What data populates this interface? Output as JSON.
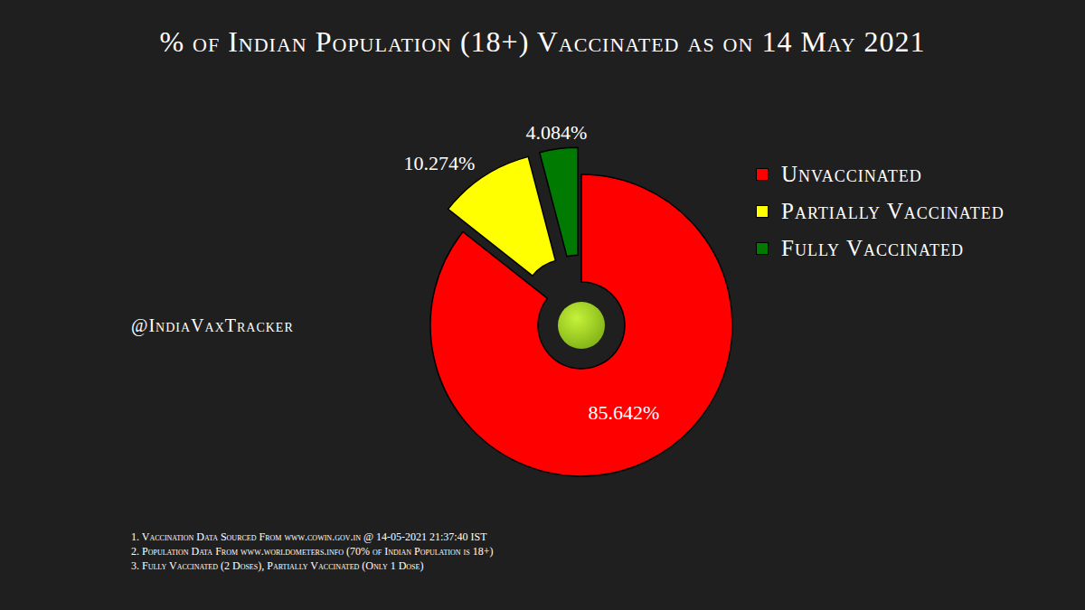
{
  "chart_data": {
    "type": "pie",
    "title": "% of Indian Population (18+) Vaccinated as on 14 May 2021",
    "categories": [
      "Unvaccinated",
      "Partially Vaccinated",
      "Fully Vaccinated"
    ],
    "values": [
      85.642,
      10.274,
      4.084
    ],
    "value_labels": [
      "85.642%",
      "10.274%",
      "4.084%"
    ],
    "colors": [
      "#ff0000",
      "#ffff00",
      "#007a00"
    ],
    "data_labels": true,
    "legend": "right",
    "annotations": [
      "@IndiaVaxTracker",
      "1. Vaccination Data Sourced From www.cowin.gov.in @ 14-05-2021 21:37:40 IST",
      "2. Population Data From www.worldometers.info (70% of Indian Population is 18+)",
      "3. Fully Vaccinated (2 Doses), Partially Vaccinated (Only 1 Dose)"
    ]
  }
}
